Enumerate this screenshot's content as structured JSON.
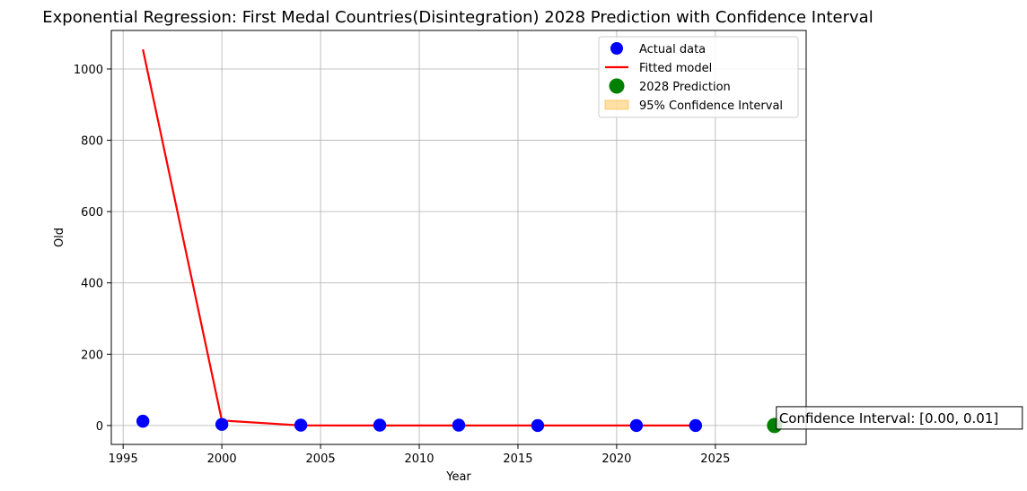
{
  "chart_data": {
    "type": "scatter",
    "title": "Exponential Regression: First Medal Countries(Disintegration) 2028 Prediction with Confidence Interval",
    "xlabel": "Year",
    "ylabel": "Old",
    "xlim": [
      1994.4,
      2029.6
    ],
    "ylim": [
      -53,
      1108
    ],
    "x_ticks": [
      1995,
      2000,
      2005,
      2010,
      2015,
      2020,
      2025
    ],
    "y_ticks": [
      0,
      200,
      400,
      600,
      800,
      1000
    ],
    "grid": true,
    "legend_position": "top-right",
    "series": [
      {
        "name": "Actual data",
        "kind": "scatter",
        "color": "#0000ff",
        "x": [
          1996,
          2000,
          2004,
          2008,
          2012,
          2016,
          2021,
          2024
        ],
        "y": [
          12,
          3,
          1,
          1,
          1,
          0,
          0,
          0
        ]
      },
      {
        "name": "Fitted model",
        "kind": "line",
        "color": "#ff0000",
        "x": [
          1996,
          2000,
          2004,
          2008,
          2012,
          2016,
          2021,
          2024
        ],
        "y": [
          1055,
          14,
          0.2,
          0.003,
          0,
          0,
          0,
          0
        ]
      },
      {
        "name": "2028 Prediction",
        "kind": "scatter",
        "color": "#008000",
        "x": [
          2028
        ],
        "y": [
          0
        ]
      },
      {
        "name": "95% Confidence Interval",
        "kind": "area",
        "color": "#ffa500",
        "x": [
          2028
        ],
        "y_low": [
          0.0
        ],
        "y_high": [
          0.01
        ]
      }
    ],
    "annotation": {
      "text": "Confidence Interval: [0.00, 0.01]",
      "x": 2028,
      "y": 0
    }
  }
}
